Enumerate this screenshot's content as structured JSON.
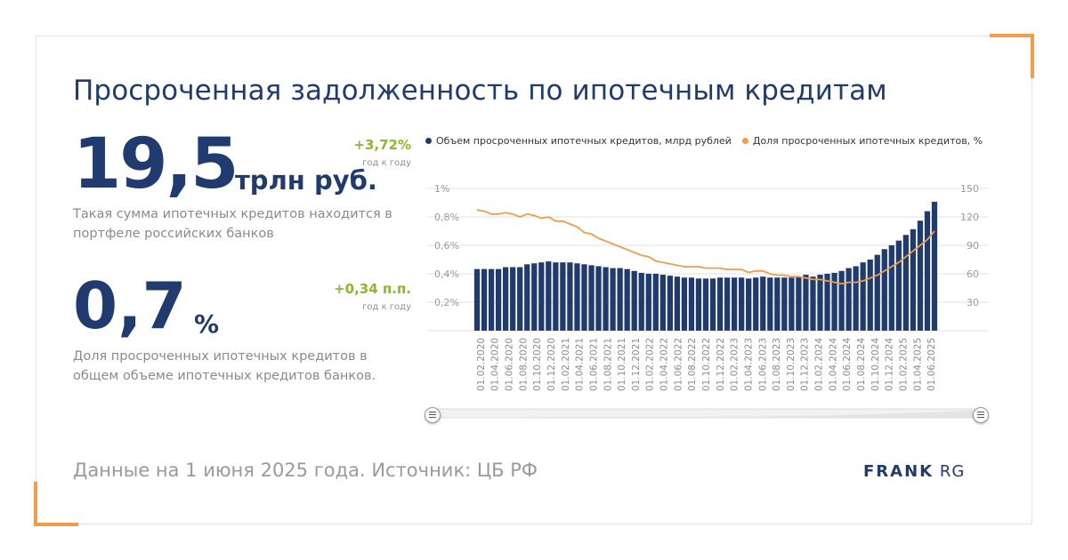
{
  "title": "Просроченная задолженность по ипотечным кредитам",
  "stat1": {
    "value": "19,5",
    "unit": "трлн руб.",
    "delta": "+3,72%",
    "delta_note": "год к году",
    "description": "Такая сумма ипотечных кредитов находится в портфеле российских банков"
  },
  "stat2": {
    "value": "0,7",
    "unit": "%",
    "delta": "+0,34 п.п.",
    "delta_note": "год к году",
    "description": "Доля просроченных ипотечных кредитов в общем объеме ипотечных кредитов банков."
  },
  "footer": "Данные на 1 июня 2025 года. Источник: ЦБ РФ",
  "logo": {
    "word1": "FRANK",
    "word2": "RG"
  },
  "colors": {
    "bar": "#1f3b6f",
    "line": "#f19c49",
    "accent": "#8cb82b",
    "corner": "#f19c49"
  },
  "icons": {
    "scroll_handle": "drag-handle-icon"
  },
  "chart_data": {
    "type": "bar",
    "legend_position": "top",
    "grid": true,
    "xlabels": [
      "01.02.2020",
      "01.04.2020",
      "01.06.2020",
      "01.08.2020",
      "01.10.2020",
      "01.12.2020",
      "01.02.2021",
      "01.04.2021",
      "01.06.2021",
      "01.08.2021",
      "01.10.2021",
      "01.12.2021",
      "01.02.2022",
      "01.04.2022",
      "01.06.2022",
      "01.08.2022",
      "01.10.2022",
      "01.12.2022",
      "01.02.2023",
      "01.04.2023",
      "01.06.2023",
      "01.08.2023",
      "01.10.2023",
      "01.12.2023",
      "01.02.2024",
      "01.04.2024",
      "01.06.2024",
      "01.08.2024",
      "01.10.2024",
      "01.12.2024",
      "01.02.2025",
      "01.04.2025",
      "01.06.2025"
    ],
    "y_left": {
      "ticks": [
        "1%",
        "0,8%",
        "0,6%",
        "0,4%",
        "0,2%"
      ],
      "ylim": [
        0,
        1.0
      ]
    },
    "y_right": {
      "ticks": [
        "150",
        "120",
        "90",
        "60",
        "30"
      ],
      "ylim": [
        0,
        150
      ]
    },
    "series": [
      {
        "name": "Объем просроченных ипотечных кредитов, млрд рублей",
        "type": "bar",
        "axis": "right",
        "values": [
          65,
          65,
          65,
          65,
          67,
          67,
          67,
          70,
          71,
          72,
          73,
          72,
          72,
          72,
          71,
          70,
          69,
          68,
          67,
          66,
          66,
          65,
          63,
          61,
          60,
          60,
          59,
          58,
          57,
          56,
          56,
          55,
          55,
          55,
          56,
          56,
          56,
          56,
          55,
          56,
          57,
          56,
          56,
          56,
          56,
          57,
          59,
          57,
          59,
          60,
          61,
          63,
          66,
          68,
          72,
          75,
          80,
          86,
          90,
          95,
          101,
          107,
          116,
          126,
          136
        ]
      },
      {
        "name": "Доля просроченных ипотечных кредитов, %",
        "type": "line",
        "axis": "left",
        "values": [
          0.85,
          0.84,
          0.82,
          0.82,
          0.83,
          0.82,
          0.8,
          0.82,
          0.81,
          0.79,
          0.8,
          0.77,
          0.77,
          0.75,
          0.73,
          0.69,
          0.68,
          0.65,
          0.63,
          0.61,
          0.59,
          0.57,
          0.55,
          0.53,
          0.52,
          0.49,
          0.48,
          0.47,
          0.46,
          0.45,
          0.45,
          0.45,
          0.44,
          0.44,
          0.44,
          0.43,
          0.43,
          0.43,
          0.41,
          0.42,
          0.42,
          0.4,
          0.39,
          0.39,
          0.38,
          0.38,
          0.37,
          0.36,
          0.36,
          0.35,
          0.34,
          0.33,
          0.34,
          0.34,
          0.35,
          0.37,
          0.39,
          0.42,
          0.45,
          0.48,
          0.52,
          0.56,
          0.6,
          0.64,
          0.7
        ]
      }
    ]
  }
}
